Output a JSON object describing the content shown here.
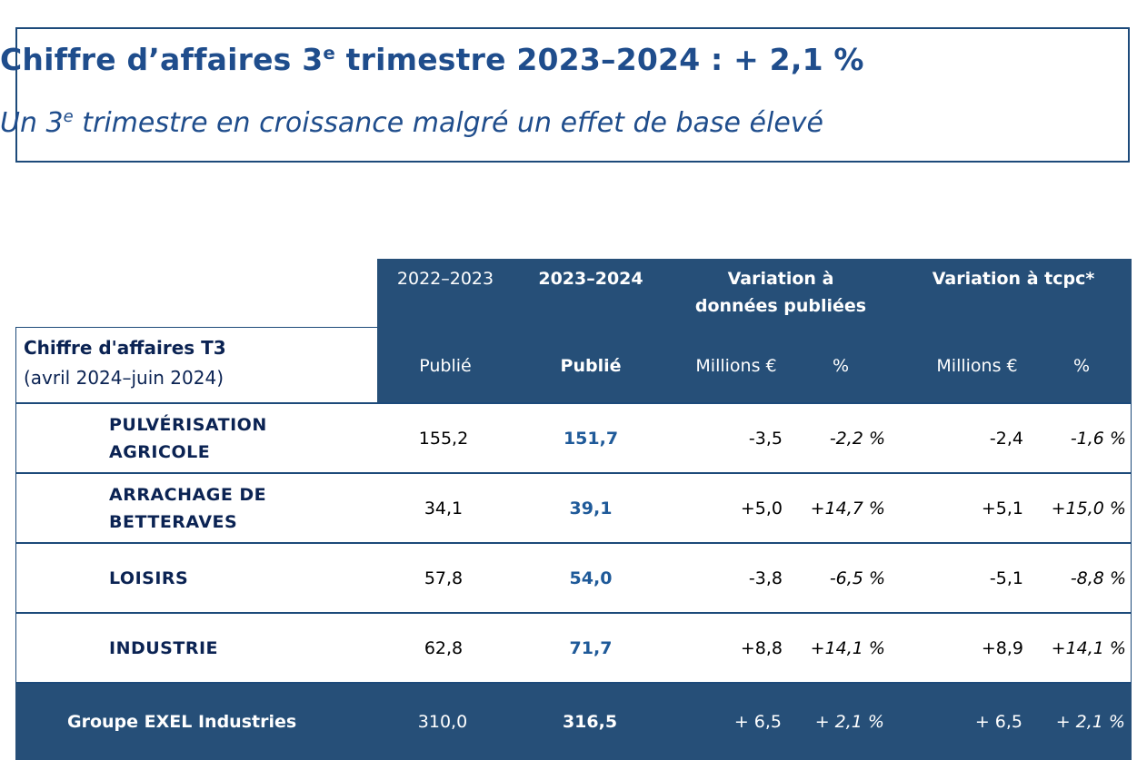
{
  "title": "Chiffre d’affaires 3",
  "title_sup": "e",
  "title_rest": " trimestre 2023–2024 : + 2,1 %",
  "subtitle": "Un 3",
  "subtitle_sup": "e",
  "subtitle_rest": " trimestre en croissance malgré un effet de base élevé",
  "table": {
    "corner_label": "Chiffre d'affaires T3",
    "corner_period": "(avril 2024–juin 2024)",
    "headers": {
      "prev_year": "2022–2023",
      "cur_year": "2023–2024",
      "var_pub_line1": "Variation à",
      "var_pub_line2": "données publiées",
      "var_tcpc": "Variation à tcpc*",
      "prev_sub": "Publié",
      "cur_sub": "Publié",
      "var_pub_m": "Millions €",
      "var_pub_pct": "%",
      "var_tcpc_m": "Millions €",
      "var_tcpc_pct": "%"
    },
    "rows": [
      {
        "label": "PULVÉRISATION AGRICOLE",
        "prev": "155,2",
        "cur": "151,7",
        "pub_m": "-3,5",
        "pub_pct": "-2,2 %",
        "tcpc_m": "-2,4",
        "tcpc_pct": "-1,6 %"
      },
      {
        "label": "ARRACHAGE DE BETTERAVES",
        "prev": "34,1",
        "cur": "39,1",
        "pub_m": "+5,0",
        "pub_pct": "+14,7 %",
        "tcpc_m": "+5,1",
        "tcpc_pct": "+15,0 %"
      },
      {
        "label": "LOISIRS",
        "prev": "57,8",
        "cur": "54,0",
        "pub_m": "-3,8",
        "pub_pct": "-6,5 %",
        "tcpc_m": "-5,1",
        "tcpc_pct": "-8,8 %"
      },
      {
        "label": "INDUSTRIE",
        "prev": "62,8",
        "cur": "71,7",
        "pub_m": "+8,8",
        "pub_pct": "+14,1 %",
        "tcpc_m": "+8,9",
        "tcpc_pct": "+14,1 %"
      }
    ],
    "total": {
      "label": "Groupe EXEL Industries",
      "prev": "310,0",
      "cur": "316,5",
      "pub_m": "+ 6,5",
      "pub_pct": "+ 2,1 %",
      "tcpc_m": "+ 6,5",
      "tcpc_pct": "+ 2,1 %"
    }
  },
  "colors": {
    "header_bg": "#264f78",
    "title": "#1f4d8c",
    "row_label": "#0b2353",
    "current_value": "#1f5a99"
  }
}
